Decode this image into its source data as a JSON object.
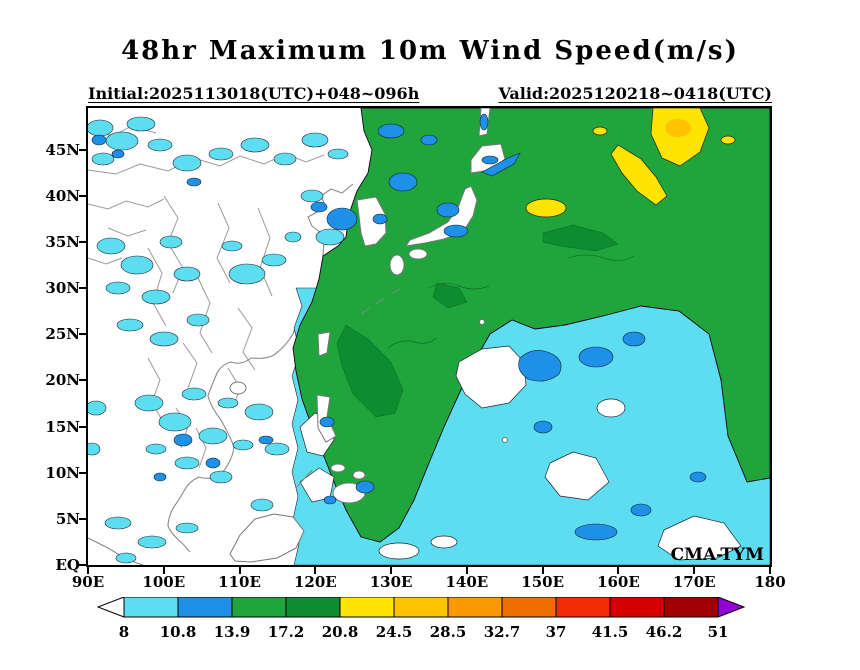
{
  "header": {
    "title": "48hr Maximum 10m Wind Speed(m/s)",
    "subtitle_left": "Initial:2025113018(UTC)+048~096h",
    "subtitle_right": "Valid:2025120218~0418(UTC)"
  },
  "map": {
    "watermark": "CMA-TYM"
  },
  "axes": {
    "y_ticks": [
      {
        "label": "45N",
        "value": 45
      },
      {
        "label": "40N",
        "value": 40
      },
      {
        "label": "35N",
        "value": 35
      },
      {
        "label": "30N",
        "value": 30
      },
      {
        "label": "25N",
        "value": 25
      },
      {
        "label": "20N",
        "value": 20
      },
      {
        "label": "15N",
        "value": 15
      },
      {
        "label": "10N",
        "value": 10
      },
      {
        "label": "5N",
        "value": 5
      },
      {
        "label": "EQ",
        "value": 0
      }
    ],
    "x_ticks": [
      {
        "label": "90E",
        "value": 90
      },
      {
        "label": "100E",
        "value": 100
      },
      {
        "label": "110E",
        "value": 110
      },
      {
        "label": "120E",
        "value": 120
      },
      {
        "label": "130E",
        "value": 130
      },
      {
        "label": "140E",
        "value": 140
      },
      {
        "label": "150E",
        "value": 150
      },
      {
        "label": "160E",
        "value": 160
      },
      {
        "label": "170E",
        "value": 170
      },
      {
        "label": "180",
        "value": 180
      }
    ]
  },
  "chart_data": {
    "type": "heatmap",
    "title": "48hr Maximum 10m Wind Speed(m/s)",
    "variable": "maximum 10m wind speed",
    "units": "m/s",
    "model_watermark": "CMA-TYM",
    "initial_time": "2025113018(UTC)",
    "forecast_range": "+048~096h",
    "valid_time": "2025120218~0418(UTC)",
    "lon_range_deg_e": [
      90,
      180
    ],
    "lat_range_deg_n": [
      0,
      49.5
    ],
    "grid": "off",
    "legend_position": "bottom",
    "colorbar": {
      "levels": [
        8,
        10.8,
        13.9,
        17.2,
        20.8,
        24.5,
        28.5,
        32.7,
        37,
        41.5,
        46.2,
        51
      ],
      "colors": [
        "#5CDEF0",
        "#1E90E8",
        "#1FA53C",
        "#0E8C30",
        "#FFE400",
        "#FFC300",
        "#FB9800",
        "#F06E00",
        "#EF2D00",
        "#D40000",
        "#A00000"
      ],
      "below_color": "#FFFFFF",
      "above_color": "#9400D3"
    },
    "regions": [
      {
        "area": "mid-latitude NW Pacific, Sea of Japan, East/South China Sea",
        "wind_ms": "13.9-20.8",
        "shade": "green"
      },
      {
        "area": "NW Pacific near 160-173E, 40-49N and near 148-153E, 38N",
        "wind_ms": "20.8-28.5",
        "shade": "yellow"
      },
      {
        "area": "tropical western Pacific 135-180E, 0-27N",
        "wind_ms": "8-13.9",
        "shade": "cyan/blue with calm white patches"
      },
      {
        "area": "strip along 173-180E, 8-30N",
        "wind_ms": "13.9-17.2",
        "shade": "green"
      },
      {
        "area": "China interior, Indochina, Borneo",
        "wind_ms": "<8 with scattered 8-13.9 patches",
        "shade": "white/cyan"
      }
    ]
  }
}
